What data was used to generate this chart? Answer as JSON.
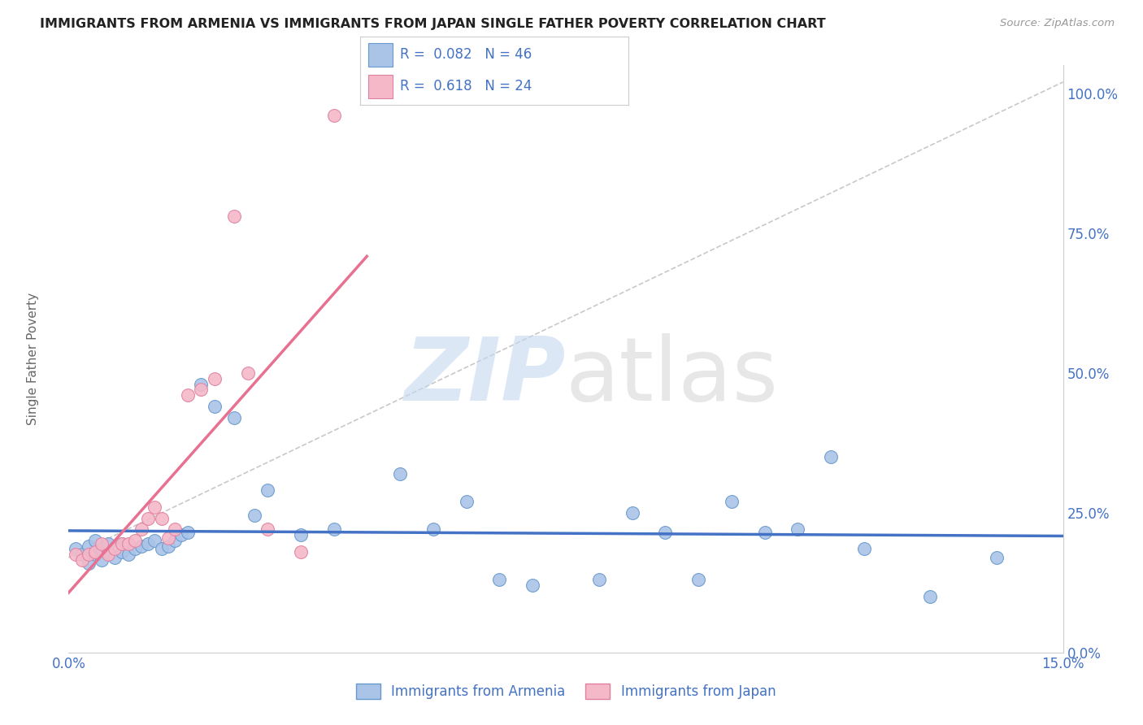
{
  "title": "IMMIGRANTS FROM ARMENIA VS IMMIGRANTS FROM JAPAN SINGLE FATHER POVERTY CORRELATION CHART",
  "source": "Source: ZipAtlas.com",
  "legend_armenia": "Immigrants from Armenia",
  "legend_japan": "Immigrants from Japan",
  "r_armenia": "0.082",
  "n_armenia": "46",
  "r_japan": "0.618",
  "n_japan": "24",
  "color_armenia_fill": "#aac4e8",
  "color_japan_fill": "#f5b8c8",
  "color_armenia_edge": "#6699cc",
  "color_japan_edge": "#e080a0",
  "color_armenia_line": "#4472c4",
  "color_japan_line": "#e87090",
  "color_diagonal": "#bbbbbb",
  "color_text_blue": "#4472c4",
  "color_text_dark": "#222222",
  "background_color": "#ffffff",
  "grid_color": "#e0e0e0",
  "arm_x": [
    0.001,
    0.002,
    0.003,
    0.003,
    0.004,
    0.004,
    0.005,
    0.005,
    0.006,
    0.006,
    0.007,
    0.008,
    0.008,
    0.009,
    0.01,
    0.011,
    0.012,
    0.013,
    0.014,
    0.015,
    0.016,
    0.017,
    0.018,
    0.02,
    0.022,
    0.025,
    0.028,
    0.03,
    0.035,
    0.04,
    0.05,
    0.055,
    0.06,
    0.065,
    0.07,
    0.08,
    0.085,
    0.09,
    0.095,
    0.1,
    0.105,
    0.11,
    0.115,
    0.12,
    0.13,
    0.14
  ],
  "arm_y": [
    0.185,
    0.175,
    0.16,
    0.19,
    0.175,
    0.2,
    0.165,
    0.185,
    0.18,
    0.195,
    0.17,
    0.18,
    0.195,
    0.175,
    0.185,
    0.19,
    0.195,
    0.2,
    0.185,
    0.19,
    0.2,
    0.21,
    0.215,
    0.48,
    0.44,
    0.42,
    0.245,
    0.29,
    0.21,
    0.22,
    0.32,
    0.22,
    0.27,
    0.13,
    0.12,
    0.13,
    0.25,
    0.215,
    0.13,
    0.27,
    0.215,
    0.22,
    0.35,
    0.185,
    0.1,
    0.17
  ],
  "jap_x": [
    0.001,
    0.002,
    0.003,
    0.004,
    0.005,
    0.006,
    0.007,
    0.008,
    0.009,
    0.01,
    0.011,
    0.012,
    0.013,
    0.014,
    0.015,
    0.016,
    0.018,
    0.02,
    0.022,
    0.025,
    0.027,
    0.03,
    0.035,
    0.04
  ],
  "jap_y": [
    0.175,
    0.165,
    0.175,
    0.18,
    0.195,
    0.175,
    0.185,
    0.195,
    0.195,
    0.2,
    0.22,
    0.24,
    0.26,
    0.24,
    0.205,
    0.22,
    0.46,
    0.47,
    0.49,
    0.78,
    0.5,
    0.22,
    0.18,
    0.96
  ],
  "xlim": [
    0.0,
    0.15
  ],
  "ylim": [
    0.0,
    1.05
  ],
  "xtick_positions": [
    0.0,
    0.15
  ],
  "xtick_labels": [
    "0.0%",
    "15.0%"
  ],
  "ytick_positions": [
    0.0,
    0.25,
    0.5,
    0.75,
    1.0
  ],
  "ytick_labels": [
    "0.0%",
    "25.0%",
    "50.0%",
    "75.0%",
    "100.0%"
  ]
}
